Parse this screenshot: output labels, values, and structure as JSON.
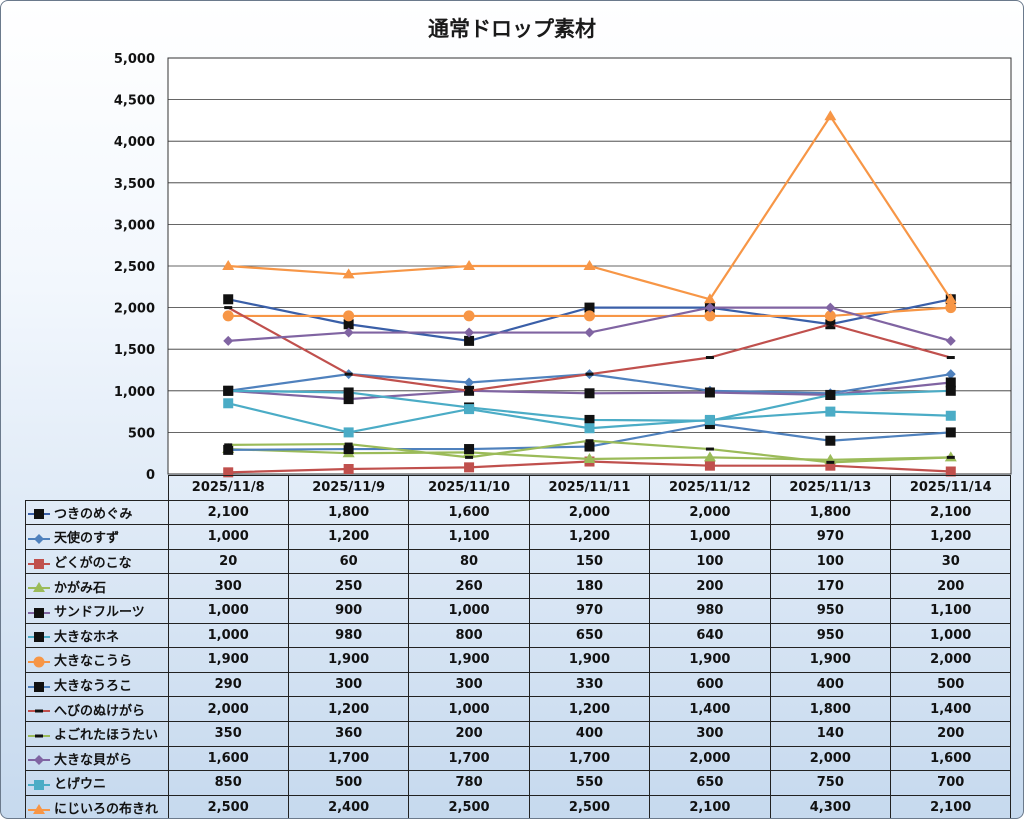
{
  "chart_data": {
    "type": "line",
    "title": "通常ドロップ素材",
    "categories": [
      "2025/11/8",
      "2025/11/9",
      "2025/11/10",
      "2025/11/11",
      "2025/11/12",
      "2025/11/13",
      "2025/11/14"
    ],
    "ylim": [
      0,
      5000
    ],
    "yticks": [
      "0",
      "500",
      "1,000",
      "1,500",
      "2,000",
      "2,500",
      "3,000",
      "3,500",
      "4,000",
      "4,500",
      "5,000"
    ],
    "grid": true,
    "legend": "data-table",
    "series": [
      {
        "name": "つきのめぐみ",
        "color": "#3a5fa8",
        "marker": "square-black",
        "values": [
          2100,
          1800,
          1600,
          2000,
          2000,
          1800,
          2100
        ],
        "labels": [
          "2,100",
          "1,800",
          "1,600",
          "2,000",
          "2,000",
          "1,800",
          "2,100"
        ]
      },
      {
        "name": "天使のすず",
        "color": "#4f81bd",
        "marker": "diamond",
        "values": [
          1000,
          1200,
          1100,
          1200,
          1000,
          970,
          1200
        ],
        "labels": [
          "1,000",
          "1,200",
          "1,100",
          "1,200",
          "1,000",
          "970",
          "1,200"
        ]
      },
      {
        "name": "どくがのこな",
        "color": "#c0504d",
        "marker": "square",
        "values": [
          20,
          60,
          80,
          150,
          100,
          100,
          30
        ],
        "labels": [
          "20",
          "60",
          "80",
          "150",
          "100",
          "100",
          "30"
        ]
      },
      {
        "name": "かがみ石",
        "color": "#9bbb59",
        "marker": "triangle",
        "values": [
          300,
          250,
          260,
          180,
          200,
          170,
          200
        ],
        "labels": [
          "300",
          "250",
          "260",
          "180",
          "200",
          "170",
          "200"
        ]
      },
      {
        "name": "サンドフルーツ",
        "color": "#8064a2",
        "marker": "square-black",
        "values": [
          1000,
          900,
          1000,
          970,
          980,
          950,
          1100
        ],
        "labels": [
          "1,000",
          "900",
          "1,000",
          "970",
          "980",
          "950",
          "1,100"
        ]
      },
      {
        "name": "大きなホネ",
        "color": "#4bacc6",
        "marker": "square-black",
        "values": [
          1000,
          980,
          800,
          650,
          640,
          950,
          1000
        ],
        "labels": [
          "1,000",
          "980",
          "800",
          "650",
          "640",
          "950",
          "1,000"
        ]
      },
      {
        "name": "大きなこうら",
        "color": "#f79646",
        "marker": "circle",
        "values": [
          1900,
          1900,
          1900,
          1900,
          1900,
          1900,
          2000
        ],
        "labels": [
          "1,900",
          "1,900",
          "1,900",
          "1,900",
          "1,900",
          "1,900",
          "2,000"
        ]
      },
      {
        "name": "大きなうろこ",
        "color": "#4f81bd",
        "marker": "square-black",
        "values": [
          290,
          300,
          300,
          330,
          600,
          400,
          500
        ],
        "labels": [
          "290",
          "300",
          "300",
          "330",
          "600",
          "400",
          "500"
        ]
      },
      {
        "name": "へびのぬけがら",
        "color": "#c0504d",
        "marker": "dash",
        "values": [
          2000,
          1200,
          1000,
          1200,
          1400,
          1800,
          1400
        ],
        "labels": [
          "2,000",
          "1,200",
          "1,000",
          "1,200",
          "1,400",
          "1,800",
          "1,400"
        ]
      },
      {
        "name": "よごれたほうたい",
        "color": "#9bbb59",
        "marker": "dash",
        "values": [
          350,
          360,
          200,
          400,
          300,
          140,
          200
        ],
        "labels": [
          "350",
          "360",
          "200",
          "400",
          "300",
          "140",
          "200"
        ]
      },
      {
        "name": "大きな貝がら",
        "color": "#8064a2",
        "marker": "diamond",
        "values": [
          1600,
          1700,
          1700,
          1700,
          2000,
          2000,
          1600
        ],
        "labels": [
          "1,600",
          "1,700",
          "1,700",
          "1,700",
          "2,000",
          "2,000",
          "1,600"
        ]
      },
      {
        "name": "とげウニ",
        "color": "#4bacc6",
        "marker": "square",
        "values": [
          850,
          500,
          780,
          550,
          650,
          750,
          700
        ],
        "labels": [
          "850",
          "500",
          "780",
          "550",
          "650",
          "750",
          "700"
        ]
      },
      {
        "name": "にじいろの布きれ",
        "color": "#f79646",
        "marker": "triangle",
        "values": [
          2500,
          2400,
          2500,
          2500,
          2100,
          4300,
          2100
        ],
        "labels": [
          "2,500",
          "2,400",
          "2,500",
          "2,500",
          "2,100",
          "4,300",
          "2,100"
        ]
      }
    ]
  }
}
